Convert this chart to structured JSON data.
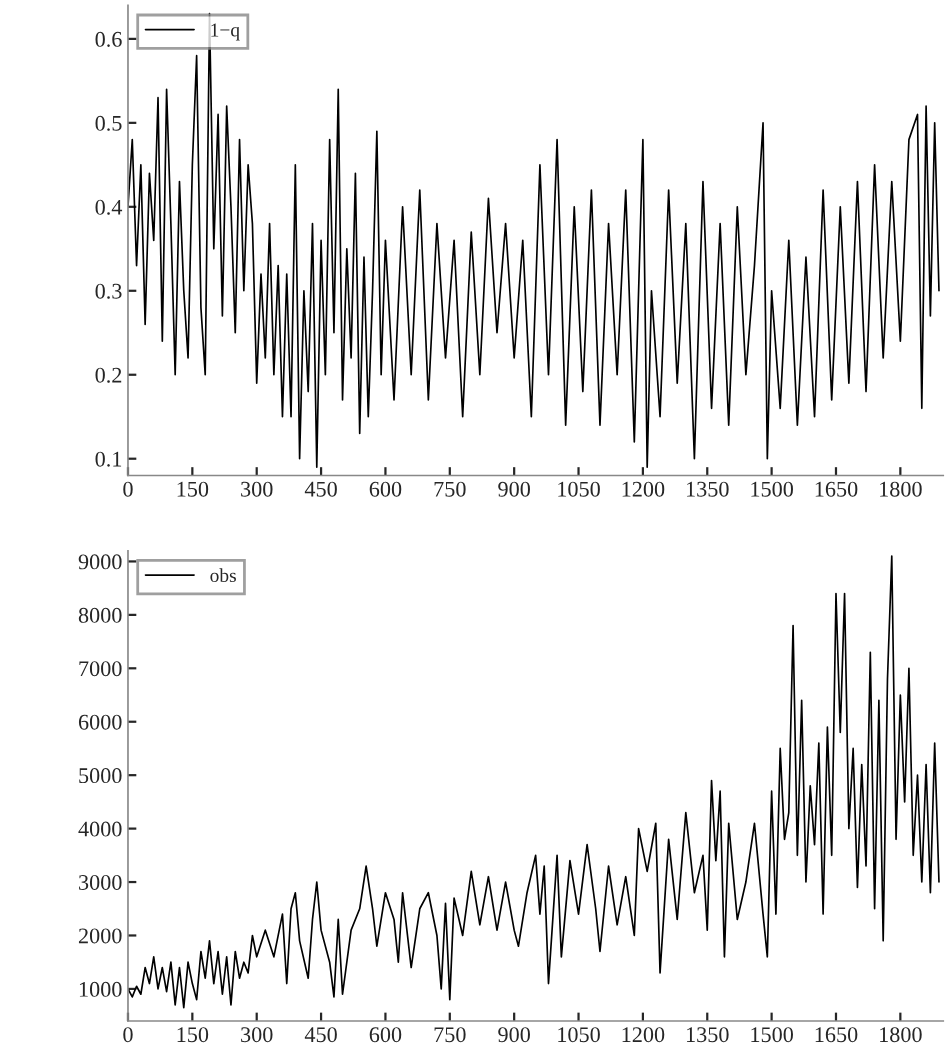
{
  "chart_data": [
    {
      "type": "line",
      "xlim": [
        0,
        1900
      ],
      "ylim": [
        0.08,
        0.64
      ],
      "xticks": [
        0,
        150,
        300,
        450,
        600,
        750,
        900,
        1050,
        1200,
        1350,
        1500,
        1650,
        1800
      ],
      "yticks": [
        0.1,
        0.2,
        0.3,
        0.4,
        0.5,
        0.6
      ],
      "grid": false,
      "legend": "top left",
      "series": [
        {
          "name": "1−q",
          "color": "#000000",
          "x": [
            0,
            10,
            20,
            30,
            40,
            50,
            60,
            70,
            80,
            90,
            100,
            110,
            120,
            130,
            140,
            150,
            160,
            170,
            180,
            190,
            200,
            210,
            220,
            230,
            240,
            250,
            260,
            270,
            280,
            290,
            300,
            310,
            320,
            330,
            340,
            350,
            360,
            370,
            380,
            390,
            400,
            410,
            420,
            430,
            440,
            450,
            460,
            470,
            480,
            490,
            500,
            510,
            520,
            530,
            540,
            550,
            560,
            570,
            580,
            590,
            600,
            620,
            640,
            660,
            680,
            700,
            720,
            740,
            760,
            780,
            800,
            820,
            840,
            860,
            880,
            900,
            920,
            940,
            960,
            980,
            1000,
            1020,
            1040,
            1060,
            1080,
            1100,
            1120,
            1140,
            1160,
            1180,
            1200,
            1210,
            1220,
            1240,
            1260,
            1280,
            1300,
            1320,
            1340,
            1360,
            1380,
            1400,
            1420,
            1440,
            1460,
            1480,
            1490,
            1500,
            1520,
            1540,
            1560,
            1580,
            1600,
            1620,
            1640,
            1660,
            1680,
            1700,
            1720,
            1740,
            1760,
            1780,
            1800,
            1820,
            1840,
            1850,
            1860,
            1870,
            1880,
            1890
          ],
          "values": [
            0.4,
            0.48,
            0.33,
            0.45,
            0.26,
            0.44,
            0.36,
            0.53,
            0.24,
            0.54,
            0.38,
            0.2,
            0.43,
            0.3,
            0.22,
            0.45,
            0.58,
            0.28,
            0.2,
            0.63,
            0.35,
            0.51,
            0.27,
            0.52,
            0.4,
            0.25,
            0.48,
            0.3,
            0.45,
            0.38,
            0.19,
            0.32,
            0.22,
            0.38,
            0.2,
            0.33,
            0.15,
            0.32,
            0.15,
            0.45,
            0.1,
            0.3,
            0.18,
            0.38,
            0.09,
            0.36,
            0.2,
            0.48,
            0.25,
            0.54,
            0.17,
            0.35,
            0.22,
            0.44,
            0.13,
            0.34,
            0.15,
            0.3,
            0.49,
            0.2,
            0.36,
            0.17,
            0.4,
            0.2,
            0.42,
            0.17,
            0.38,
            0.22,
            0.36,
            0.15,
            0.37,
            0.2,
            0.41,
            0.25,
            0.38,
            0.22,
            0.36,
            0.15,
            0.45,
            0.2,
            0.48,
            0.14,
            0.4,
            0.18,
            0.42,
            0.14,
            0.38,
            0.2,
            0.42,
            0.12,
            0.48,
            0.09,
            0.3,
            0.15,
            0.42,
            0.19,
            0.38,
            0.1,
            0.43,
            0.16,
            0.38,
            0.14,
            0.4,
            0.2,
            0.33,
            0.5,
            0.1,
            0.3,
            0.16,
            0.36,
            0.14,
            0.34,
            0.15,
            0.42,
            0.17,
            0.4,
            0.19,
            0.43,
            0.18,
            0.45,
            0.22,
            0.43,
            0.24,
            0.48,
            0.51,
            0.16,
            0.52,
            0.27,
            0.5,
            0.3
          ]
        }
      ]
    },
    {
      "type": "line",
      "xlim": [
        0,
        1900
      ],
      "ylim": [
        400,
        9200
      ],
      "xticks": [
        0,
        150,
        300,
        450,
        600,
        750,
        900,
        1050,
        1200,
        1350,
        1500,
        1650,
        1800
      ],
      "yticks": [
        1000,
        2000,
        3000,
        4000,
        5000,
        6000,
        7000,
        8000,
        9000
      ],
      "grid": false,
      "legend": "top left",
      "series": [
        {
          "name": "obs",
          "color": "#000000",
          "x": [
            0,
            10,
            20,
            30,
            40,
            50,
            60,
            70,
            80,
            90,
            100,
            110,
            120,
            130,
            140,
            150,
            160,
            170,
            180,
            190,
            200,
            210,
            220,
            230,
            240,
            250,
            260,
            270,
            280,
            290,
            300,
            320,
            340,
            360,
            370,
            380,
            390,
            400,
            420,
            430,
            440,
            450,
            470,
            480,
            490,
            500,
            520,
            540,
            555,
            570,
            580,
            600,
            620,
            630,
            640,
            660,
            680,
            700,
            720,
            730,
            740,
            750,
            760,
            780,
            800,
            820,
            840,
            860,
            880,
            900,
            910,
            930,
            950,
            960,
            970,
            980,
            1000,
            1010,
            1030,
            1050,
            1070,
            1090,
            1100,
            1120,
            1140,
            1160,
            1180,
            1190,
            1210,
            1230,
            1240,
            1260,
            1280,
            1300,
            1320,
            1340,
            1350,
            1360,
            1370,
            1380,
            1390,
            1400,
            1420,
            1440,
            1460,
            1480,
            1490,
            1500,
            1510,
            1520,
            1530,
            1540,
            1550,
            1560,
            1570,
            1580,
            1590,
            1600,
            1610,
            1620,
            1630,
            1640,
            1650,
            1660,
            1670,
            1680,
            1690,
            1700,
            1710,
            1720,
            1730,
            1740,
            1750,
            1760,
            1770,
            1780,
            1790,
            1800,
            1810,
            1820,
            1830,
            1840,
            1850,
            1860,
            1870,
            1880,
            1890
          ],
          "values": [
            1000,
            850,
            1050,
            900,
            1400,
            1100,
            1600,
            1000,
            1400,
            950,
            1500,
            700,
            1400,
            650,
            1500,
            1100,
            800,
            1700,
            1200,
            1900,
            1100,
            1700,
            900,
            1600,
            700,
            1700,
            1200,
            1500,
            1300,
            2000,
            1600,
            2100,
            1600,
            2400,
            1100,
            2500,
            2800,
            1900,
            1200,
            2300,
            3000,
            2100,
            1500,
            850,
            2300,
            900,
            2100,
            2500,
            3300,
            2500,
            1800,
            2800,
            2300,
            1500,
            2800,
            1400,
            2500,
            2800,
            2000,
            1000,
            2600,
            800,
            2700,
            2000,
            3200,
            2200,
            3100,
            2100,
            3000,
            2100,
            1800,
            2800,
            3500,
            2400,
            3300,
            1100,
            3500,
            1600,
            3400,
            2400,
            3700,
            2500,
            1700,
            3300,
            2200,
            3100,
            2000,
            4000,
            3200,
            4100,
            1300,
            3800,
            2300,
            4300,
            2800,
            3500,
            2100,
            4900,
            3400,
            4700,
            1600,
            4100,
            2300,
            3000,
            4100,
            2400,
            1600,
            4700,
            2400,
            5500,
            3800,
            4300,
            7800,
            3500,
            6400,
            3000,
            4800,
            3700,
            5600,
            2400,
            5900,
            3500,
            8400,
            5800,
            8400,
            4000,
            5500,
            2900,
            5200,
            3300,
            7300,
            2500,
            6400,
            1900,
            6800,
            9100,
            3800,
            6500,
            4500,
            7000,
            3500,
            5000,
            3000,
            5200,
            2800,
            5600,
            3000
          ]
        }
      ]
    }
  ]
}
